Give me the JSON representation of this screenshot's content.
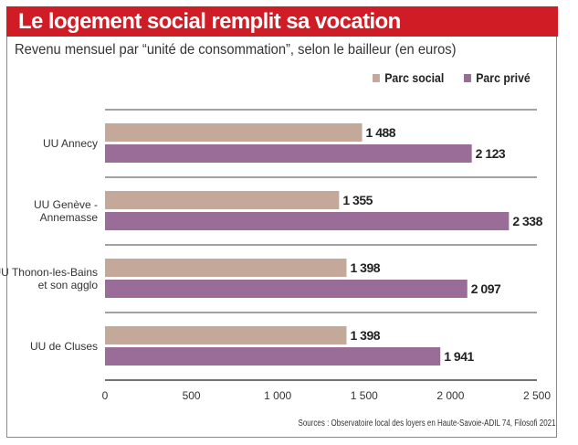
{
  "header": {
    "title": "Le logement social remplit sa vocation"
  },
  "subtitle": "Revenu mensuel par “unité de consommation”, selon le bailleur (en euros)",
  "source": "Sources : Observatoire local des loyers en Haute-Savoie-ADIL 74, Filosofi 2021",
  "colors": {
    "social": "#c4a99b",
    "prive": "#9a6d98",
    "header": "#d01c24"
  },
  "chart_data": {
    "type": "bar",
    "orientation": "horizontal",
    "title": "Le logement social remplit sa vocation",
    "categories": [
      [
        "UU Annecy"
      ],
      [
        "UU Genève -",
        "Annemasse"
      ],
      [
        "UU Thonon-les-Bains",
        "et son agglo"
      ],
      [
        "UU de Cluses"
      ]
    ],
    "series": [
      {
        "name": "Parc social",
        "values": [
          1488,
          1355,
          1398,
          1398
        ],
        "labels": [
          "1 488",
          "1 355",
          "1 398",
          "1 398"
        ]
      },
      {
        "name": "Parc privé",
        "values": [
          2123,
          2338,
          2097,
          1941
        ],
        "labels": [
          "2 123",
          "2 338",
          "2 097",
          "1 941"
        ]
      }
    ],
    "xlim": [
      0,
      2500
    ],
    "xticks": [
      0,
      500,
      1000,
      1500,
      2000,
      2500
    ],
    "xtick_labels": [
      "0",
      "500",
      "1 000",
      "1 500",
      "2 000",
      "2 500"
    ],
    "legend": "top-right"
  }
}
